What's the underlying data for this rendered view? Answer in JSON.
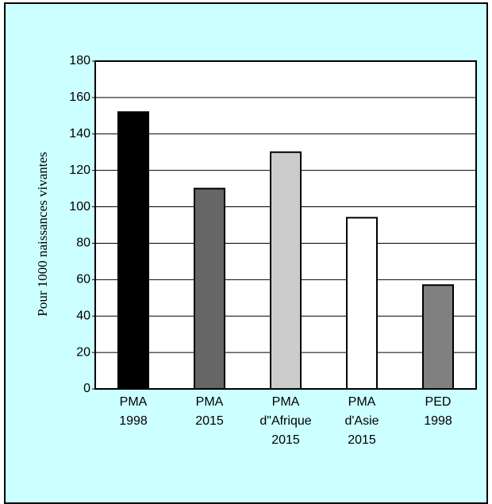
{
  "chart_data": {
    "type": "bar",
    "y_label": "Pour 1000 naissances vivantes",
    "categories": [
      "PMA\n1998",
      "PMA\n2015",
      "PMA\nd\"Afrique\n2015",
      "PMA\nd'Asie\n2015",
      "PED\n1998"
    ],
    "values": [
      152,
      110,
      130,
      94,
      57
    ],
    "colors": [
      "#000000",
      "#666666",
      "#cccccc",
      "#ffffff",
      "#808080"
    ],
    "ylim": [
      0,
      180
    ],
    "yticks": [
      0,
      20,
      40,
      60,
      80,
      100,
      120,
      140,
      160,
      180
    ],
    "grid": true
  }
}
